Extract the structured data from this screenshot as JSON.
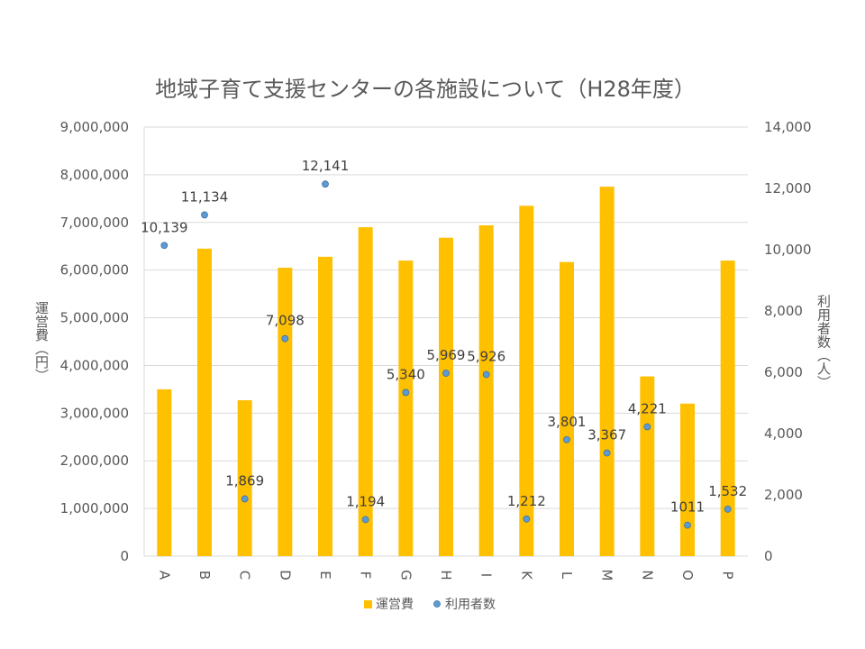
{
  "chart_data": {
    "type": "bar",
    "title": "地域子育て支援センターの各施設について（H28年度）",
    "categories": [
      "A",
      "B",
      "C",
      "D",
      "E",
      "F",
      "G",
      "H",
      "I",
      "K",
      "L",
      "M",
      "N",
      "O",
      "P"
    ],
    "ylabel_left": "運営費（円）",
    "ylabel_right": "利用者数（人）",
    "ylim_left": [
      0,
      9000000
    ],
    "ylim_right": [
      0,
      14000
    ],
    "yticks_left": [
      "0",
      "1,000,000",
      "2,000,000",
      "3,000,000",
      "4,000,000",
      "5,000,000",
      "6,000,000",
      "7,000,000",
      "8,000,000",
      "9,000,000"
    ],
    "yticks_right": [
      "0",
      "2,000",
      "4,000",
      "6,000",
      "8,000",
      "10,000",
      "12,000",
      "14,000"
    ],
    "grid": true,
    "legend_position": "bottom",
    "series": [
      {
        "name": "運営費",
        "type": "bar",
        "axis": "left",
        "color": "#FFC000",
        "values": [
          3500000,
          6450000,
          3270000,
          6050000,
          6280000,
          6900000,
          6200000,
          6680000,
          6940000,
          7350000,
          6170000,
          7750000,
          3770000,
          3200000,
          6200000
        ]
      },
      {
        "name": "利用者数",
        "type": "scatter",
        "axis": "right",
        "color": "#5B9BD5",
        "values": [
          10139,
          11134,
          1869,
          7098,
          12141,
          1194,
          5340,
          5969,
          5926,
          1212,
          3801,
          3367,
          4221,
          1011,
          1532
        ],
        "labels": [
          "10,139",
          "11,134",
          "1,869",
          "7,098",
          "12,141",
          "1,194",
          "5,340",
          "5,969",
          "5,926",
          "1,212",
          "3,801",
          "3,367",
          "4,221",
          "1011",
          "1,532"
        ]
      }
    ]
  }
}
